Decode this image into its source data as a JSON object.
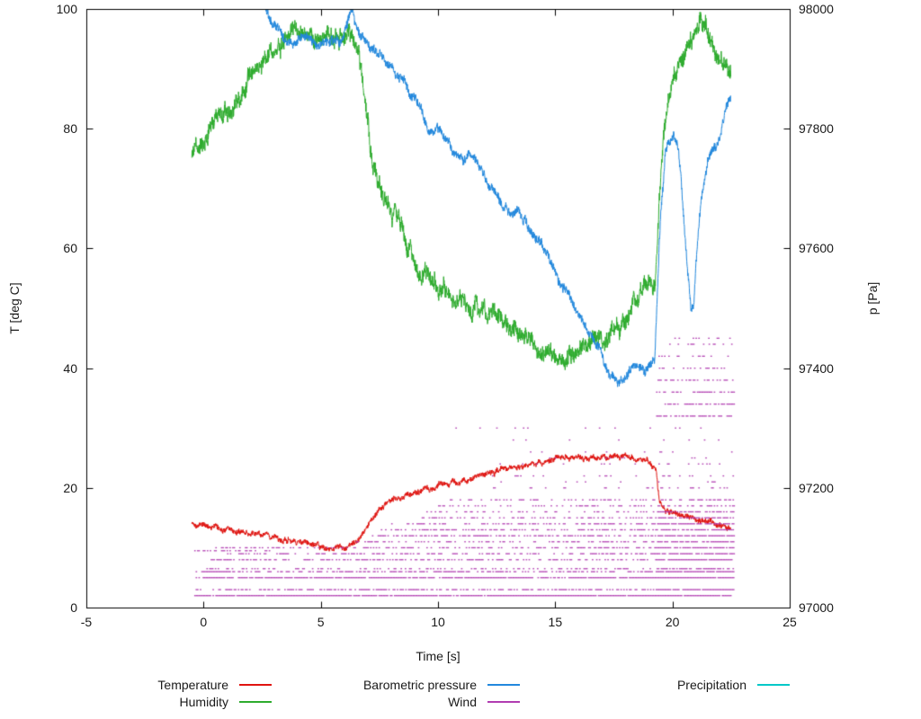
{
  "chart_data": {
    "type": "line",
    "title": "",
    "xlabel": "Time [s]",
    "ylabel_left": "T [deg C]",
    "ylabel_right": "p [Pa]",
    "x_range": [
      -5,
      25
    ],
    "x_ticks": [
      -5,
      0,
      5,
      10,
      15,
      20,
      25
    ],
    "y_left_range": [
      0,
      100
    ],
    "y_left_ticks": [
      0,
      20,
      40,
      60,
      80,
      100
    ],
    "y_right_range": [
      97000,
      98000
    ],
    "y_right_ticks": [
      97000,
      97200,
      97400,
      97600,
      97800,
      98000
    ],
    "grid": false,
    "legend_position": "below",
    "legend_rows": [
      [
        0,
        2,
        4
      ],
      [
        1,
        3
      ]
    ],
    "series": [
      {
        "name": "Temperature",
        "color": "#e01410",
        "axis": "left",
        "style": "noisy-line",
        "noise": 0.35,
        "points": [
          [
            -0.5,
            14.0
          ],
          [
            0,
            13.8
          ],
          [
            0.5,
            13.4
          ],
          [
            1,
            13.1
          ],
          [
            1.5,
            12.7
          ],
          [
            2,
            12.3
          ],
          [
            2.5,
            12.0
          ],
          [
            3,
            11.7
          ],
          [
            3.5,
            11.4
          ],
          [
            4,
            11.0
          ],
          [
            4.5,
            10.6
          ],
          [
            5,
            10.1
          ],
          [
            5.3,
            9.9
          ],
          [
            5.6,
            10.0
          ],
          [
            6,
            10.2
          ],
          [
            6.3,
            10.4
          ],
          [
            6.6,
            11.2
          ],
          [
            7,
            13.8
          ],
          [
            7.3,
            15.6
          ],
          [
            7.6,
            16.8
          ],
          [
            8,
            17.8
          ],
          [
            8.5,
            18.7
          ],
          [
            9,
            19.3
          ],
          [
            9.5,
            19.7
          ],
          [
            10,
            20.3
          ],
          [
            10.5,
            20.8
          ],
          [
            11,
            21.2
          ],
          [
            11.5,
            21.7
          ],
          [
            12,
            22.3
          ],
          [
            12.5,
            22.9
          ],
          [
            13,
            23.3
          ],
          [
            13.5,
            23.2
          ],
          [
            14,
            23.9
          ],
          [
            14.5,
            24.4
          ],
          [
            15,
            24.9
          ],
          [
            15.3,
            25.4
          ],
          [
            15.6,
            24.9
          ],
          [
            16,
            25.2
          ],
          [
            16.4,
            24.8
          ],
          [
            16.8,
            25.3
          ],
          [
            17.2,
            25.0
          ],
          [
            17.6,
            25.2
          ],
          [
            18,
            25.4
          ],
          [
            18.4,
            24.9
          ],
          [
            18.8,
            24.7
          ],
          [
            19.1,
            24.1
          ],
          [
            19.3,
            22.8
          ],
          [
            19.45,
            17.6
          ],
          [
            19.6,
            16.4
          ],
          [
            19.8,
            16.0
          ],
          [
            20,
            15.7
          ],
          [
            20.5,
            15.2
          ],
          [
            21,
            14.7
          ],
          [
            21.5,
            14.2
          ],
          [
            22,
            13.8
          ],
          [
            22.5,
            13.5
          ]
        ]
      },
      {
        "name": "Humidity",
        "color": "#2eac2e",
        "axis": "left",
        "style": "noisy-line",
        "noise": 1.1,
        "points": [
          [
            -0.5,
            76
          ],
          [
            0,
            78
          ],
          [
            0.5,
            80.5
          ],
          [
            1,
            82.5
          ],
          [
            1.5,
            85
          ],
          [
            2,
            88
          ],
          [
            2.5,
            91
          ],
          [
            3,
            93
          ],
          [
            3.5,
            95
          ],
          [
            4,
            96.5
          ],
          [
            4.3,
            97
          ],
          [
            4.6,
            96
          ],
          [
            5,
            95
          ],
          [
            5.3,
            96
          ],
          [
            5.6,
            95.5
          ],
          [
            6,
            95.2
          ],
          [
            6.2,
            96
          ],
          [
            6.4,
            95.5
          ],
          [
            6.6,
            93
          ],
          [
            6.8,
            87
          ],
          [
            7,
            81
          ],
          [
            7.2,
            75
          ],
          [
            7.4,
            71.5
          ],
          [
            7.6,
            70
          ],
          [
            7.8,
            68
          ],
          [
            8,
            66
          ],
          [
            8.3,
            64
          ],
          [
            8.6,
            61.5
          ],
          [
            9,
            57.5
          ],
          [
            9.2,
            55.5
          ],
          [
            9.4,
            56.5
          ],
          [
            9.7,
            55
          ],
          [
            10,
            54
          ],
          [
            10.3,
            53
          ],
          [
            10.6,
            52
          ],
          [
            11,
            51
          ],
          [
            11.3,
            50.5
          ],
          [
            11.6,
            50
          ],
          [
            12,
            50
          ],
          [
            12.2,
            48.5
          ],
          [
            12.4,
            49.5
          ],
          [
            12.7,
            48
          ],
          [
            13,
            47
          ],
          [
            13.3,
            46.5
          ],
          [
            13.6,
            45.5
          ],
          [
            14,
            44
          ],
          [
            14.3,
            43.5
          ],
          [
            14.6,
            43
          ],
          [
            15,
            42.2
          ],
          [
            15.4,
            42
          ],
          [
            15.8,
            42.5
          ],
          [
            16.2,
            43.2
          ],
          [
            16.6,
            44
          ],
          [
            17,
            45.5
          ],
          [
            17.2,
            46
          ],
          [
            17.4,
            47
          ],
          [
            17.6,
            46
          ],
          [
            17.8,
            46.5
          ],
          [
            18,
            48
          ],
          [
            18.3,
            50.5
          ],
          [
            18.6,
            52.5
          ],
          [
            18.9,
            54
          ],
          [
            19.1,
            53.5
          ],
          [
            19.25,
            54.5
          ],
          [
            19.35,
            62
          ],
          [
            19.5,
            72
          ],
          [
            19.65,
            80
          ],
          [
            19.8,
            84
          ],
          [
            20,
            87.5
          ],
          [
            20.3,
            90.5
          ],
          [
            20.6,
            93
          ],
          [
            21,
            96
          ],
          [
            21.2,
            98
          ],
          [
            21.4,
            97
          ],
          [
            21.6,
            95.5
          ],
          [
            21.8,
            93.5
          ],
          [
            22,
            91.5
          ],
          [
            22.2,
            90
          ],
          [
            22.5,
            88
          ]
        ]
      },
      {
        "name": "Barometric pressure",
        "color": "#2288dd",
        "axis": "right",
        "style": "noisy-line",
        "noise": 6,
        "points": [
          [
            2.55,
            98010
          ],
          [
            2.8,
            97985
          ],
          [
            3,
            97972
          ],
          [
            3.2,
            97962
          ],
          [
            3.5,
            97950
          ],
          [
            3.8,
            97944
          ],
          [
            4,
            97950
          ],
          [
            4.2,
            97960
          ],
          [
            4.5,
            97952
          ],
          [
            4.8,
            97936
          ],
          [
            5,
            97942
          ],
          [
            5.2,
            97950
          ],
          [
            5.5,
            97944
          ],
          [
            5.8,
            97950
          ],
          [
            6,
            97962
          ],
          [
            6.2,
            97984
          ],
          [
            6.35,
            97990
          ],
          [
            6.5,
            97978
          ],
          [
            6.7,
            97955
          ],
          [
            7,
            97940
          ],
          [
            7.3,
            97930
          ],
          [
            7.6,
            97918
          ],
          [
            8,
            97900
          ],
          [
            8.3,
            97890
          ],
          [
            8.6,
            97878
          ],
          [
            9,
            97852
          ],
          [
            9.3,
            97830
          ],
          [
            9.5,
            97806
          ],
          [
            9.7,
            97792
          ],
          [
            9.9,
            97800
          ],
          [
            10.1,
            97796
          ],
          [
            10.3,
            97788
          ],
          [
            10.6,
            97766
          ],
          [
            10.9,
            97748
          ],
          [
            11.1,
            97744
          ],
          [
            11.3,
            97758
          ],
          [
            11.5,
            97750
          ],
          [
            11.8,
            97734
          ],
          [
            12,
            97720
          ],
          [
            12.3,
            97700
          ],
          [
            12.5,
            97692
          ],
          [
            12.8,
            97672
          ],
          [
            13,
            97660
          ],
          [
            13.2,
            97650
          ],
          [
            13.5,
            97656
          ],
          [
            13.8,
            97640
          ],
          [
            14,
            97622
          ],
          [
            14.3,
            97606
          ],
          [
            14.6,
            97592
          ],
          [
            15,
            97562
          ],
          [
            15.3,
            97542
          ],
          [
            15.6,
            97528
          ],
          [
            16,
            97492
          ],
          [
            16.3,
            97468
          ],
          [
            16.6,
            97448
          ],
          [
            17,
            97420
          ],
          [
            17.3,
            97392
          ],
          [
            17.5,
            97380
          ],
          [
            17.7,
            97372
          ],
          [
            17.9,
            97376
          ],
          [
            18.1,
            97390
          ],
          [
            18.3,
            97402
          ],
          [
            18.5,
            97410
          ],
          [
            18.7,
            97400
          ],
          [
            18.9,
            97404
          ],
          [
            19.1,
            97408
          ],
          [
            19.25,
            97420
          ],
          [
            19.35,
            97520
          ],
          [
            19.5,
            97660
          ],
          [
            19.7,
            97755
          ],
          [
            19.9,
            97778
          ],
          [
            20.05,
            97782
          ],
          [
            20.2,
            97770
          ],
          [
            20.35,
            97722
          ],
          [
            20.5,
            97640
          ],
          [
            20.65,
            97560
          ],
          [
            20.8,
            97492
          ],
          [
            20.9,
            97500
          ],
          [
            21,
            97560
          ],
          [
            21.15,
            97650
          ],
          [
            21.3,
            97700
          ],
          [
            21.5,
            97740
          ],
          [
            21.7,
            97758
          ],
          [
            21.9,
            97772
          ],
          [
            22.1,
            97800
          ],
          [
            22.3,
            97838
          ],
          [
            22.5,
            97860
          ]
        ]
      },
      {
        "name": "Wind",
        "color": "#b13cb1",
        "axis": "left",
        "style": "dot-bands",
        "boost": {
          "t0": 19.3,
          "t1": 22.6,
          "factor": 1.8
        },
        "bands": [
          {
            "y": 2,
            "t0": -0.4,
            "t1": 22.6,
            "d": 0.95
          },
          {
            "y": 3,
            "t0": -0.4,
            "t1": 22.6,
            "d": 0.55
          },
          {
            "y": 5,
            "t0": -0.4,
            "t1": 22.6,
            "d": 0.85
          },
          {
            "y": 6,
            "t0": -0.4,
            "t1": 22.6,
            "d": 0.6
          },
          {
            "y": 6.5,
            "t0": 0,
            "t1": 22.6,
            "d": 0.3
          },
          {
            "y": 8,
            "t0": 0.3,
            "t1": 22.6,
            "d": 0.5
          },
          {
            "y": 9,
            "t0": 1.0,
            "t1": 22.6,
            "d": 0.45
          },
          {
            "y": 9.5,
            "t0": -0.4,
            "t1": 3,
            "d": 0.35
          },
          {
            "y": 10,
            "t0": 0.5,
            "t1": 22.6,
            "d": 0.45
          },
          {
            "y": 11,
            "t0": 6.5,
            "t1": 22.6,
            "d": 0.4
          },
          {
            "y": 12,
            "t0": 7.0,
            "t1": 22.6,
            "d": 0.5
          },
          {
            "y": 13,
            "t0": 7.5,
            "t1": 22.6,
            "d": 0.45
          },
          {
            "y": 14,
            "t0": 8.0,
            "t1": 22.6,
            "d": 0.45
          },
          {
            "y": 15,
            "t0": 9.0,
            "t1": 22.6,
            "d": 0.4
          },
          {
            "y": 16,
            "t0": 9.5,
            "t1": 22.6,
            "d": 0.35
          },
          {
            "y": 17,
            "t0": 10.0,
            "t1": 22.6,
            "d": 0.3
          },
          {
            "y": 18,
            "t0": 10.5,
            "t1": 22.6,
            "d": 0.3
          },
          {
            "y": 20,
            "t0": 11.5,
            "t1": 22.6,
            "d": 0.12
          },
          {
            "y": 21,
            "t0": 12,
            "t1": 22.6,
            "d": 0.08
          },
          {
            "y": 22,
            "t0": 12,
            "t1": 22.6,
            "d": 0.1
          },
          {
            "y": 24,
            "t0": 12.5,
            "t1": 22.6,
            "d": 0.08
          },
          {
            "y": 25,
            "t0": 13,
            "t1": 22.6,
            "d": 0.06
          },
          {
            "y": 26,
            "t0": 13.5,
            "t1": 22.6,
            "d": 0.06
          },
          {
            "y": 28,
            "t0": 11.5,
            "t1": 22.6,
            "d": 0.05
          },
          {
            "y": 30,
            "t0": 10.5,
            "t1": 22.6,
            "d": 0.05
          },
          {
            "y": 32,
            "t0": 19.3,
            "t1": 22.6,
            "d": 0.35
          },
          {
            "y": 34,
            "t0": 19.3,
            "t1": 22.6,
            "d": 0.3
          },
          {
            "y": 36,
            "t0": 19.3,
            "t1": 22.6,
            "d": 0.3
          },
          {
            "y": 38,
            "t0": 19.3,
            "t1": 22.6,
            "d": 0.25
          },
          {
            "y": 40,
            "t0": 19.3,
            "t1": 22.6,
            "d": 0.2
          },
          {
            "y": 42,
            "t0": 19.4,
            "t1": 22.6,
            "d": 0.15
          },
          {
            "y": 44,
            "t0": 19.5,
            "t1": 22.6,
            "d": 0.12
          },
          {
            "y": 45,
            "t0": 19.6,
            "t1": 22.6,
            "d": 0.08
          }
        ]
      },
      {
        "name": "Precipitation",
        "color": "#00c8c8",
        "axis": "left",
        "style": "noisy-line",
        "noise": 0,
        "points": []
      }
    ]
  }
}
